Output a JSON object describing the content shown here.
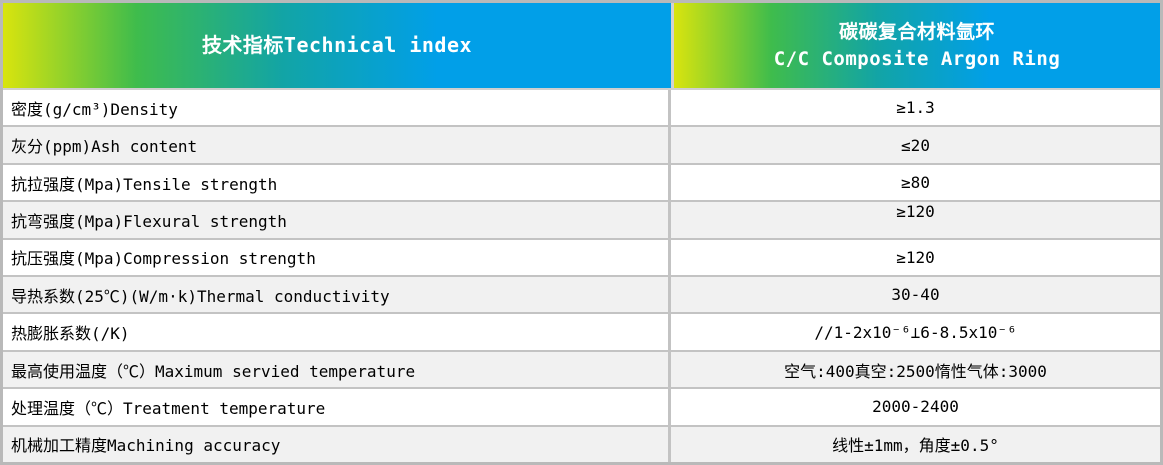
{
  "table": {
    "header": {
      "left": "技术指标Technical index",
      "right_line1": "碳碳复合材料氩环",
      "right_line2": "C/C Composite Argon Ring"
    },
    "rows": [
      {
        "label": "密度(g/cm³)Density",
        "value": "≥1.3"
      },
      {
        "label": "灰分(ppm)Ash content",
        "value": "≤20"
      },
      {
        "label": "抗拉强度(Mpa)Tensile strength",
        "value": "≥80"
      },
      {
        "label": "抗弯强度(Mpa)Flexural strength",
        "value": "≥120"
      },
      {
        "label": "抗压强度(Mpa)Compression strength",
        "value": "≥120"
      },
      {
        "label": "导热系数(25℃)(W/m·k)Thermal conductivity",
        "value": "30-40"
      },
      {
        "label": "热膨胀系数(/K)",
        "value": "//1-2x10⁻⁶⊥6-8.5x10⁻⁶"
      },
      {
        "label": "最高使用温度（℃）Maximum servied temperature",
        "value": "空气:400真空:2500惰性气体:3000"
      },
      {
        "label": "处理温度（℃）Treatment temperature",
        "value": "2000-2400"
      },
      {
        "label": "机械加工精度Machining accuracy",
        "value": "线性±1mm，角度±0.5°"
      }
    ],
    "colors": {
      "gradient": [
        "#d9e40e",
        "#3fbc4c",
        "#12a4a6",
        "#019fe8"
      ],
      "row_alt_bg": "#f1f1f1",
      "grid_line": "#c3c3c3",
      "outer_border": "#b9b9b9",
      "header_text": "#ffffff",
      "body_text": "#000000"
    }
  }
}
